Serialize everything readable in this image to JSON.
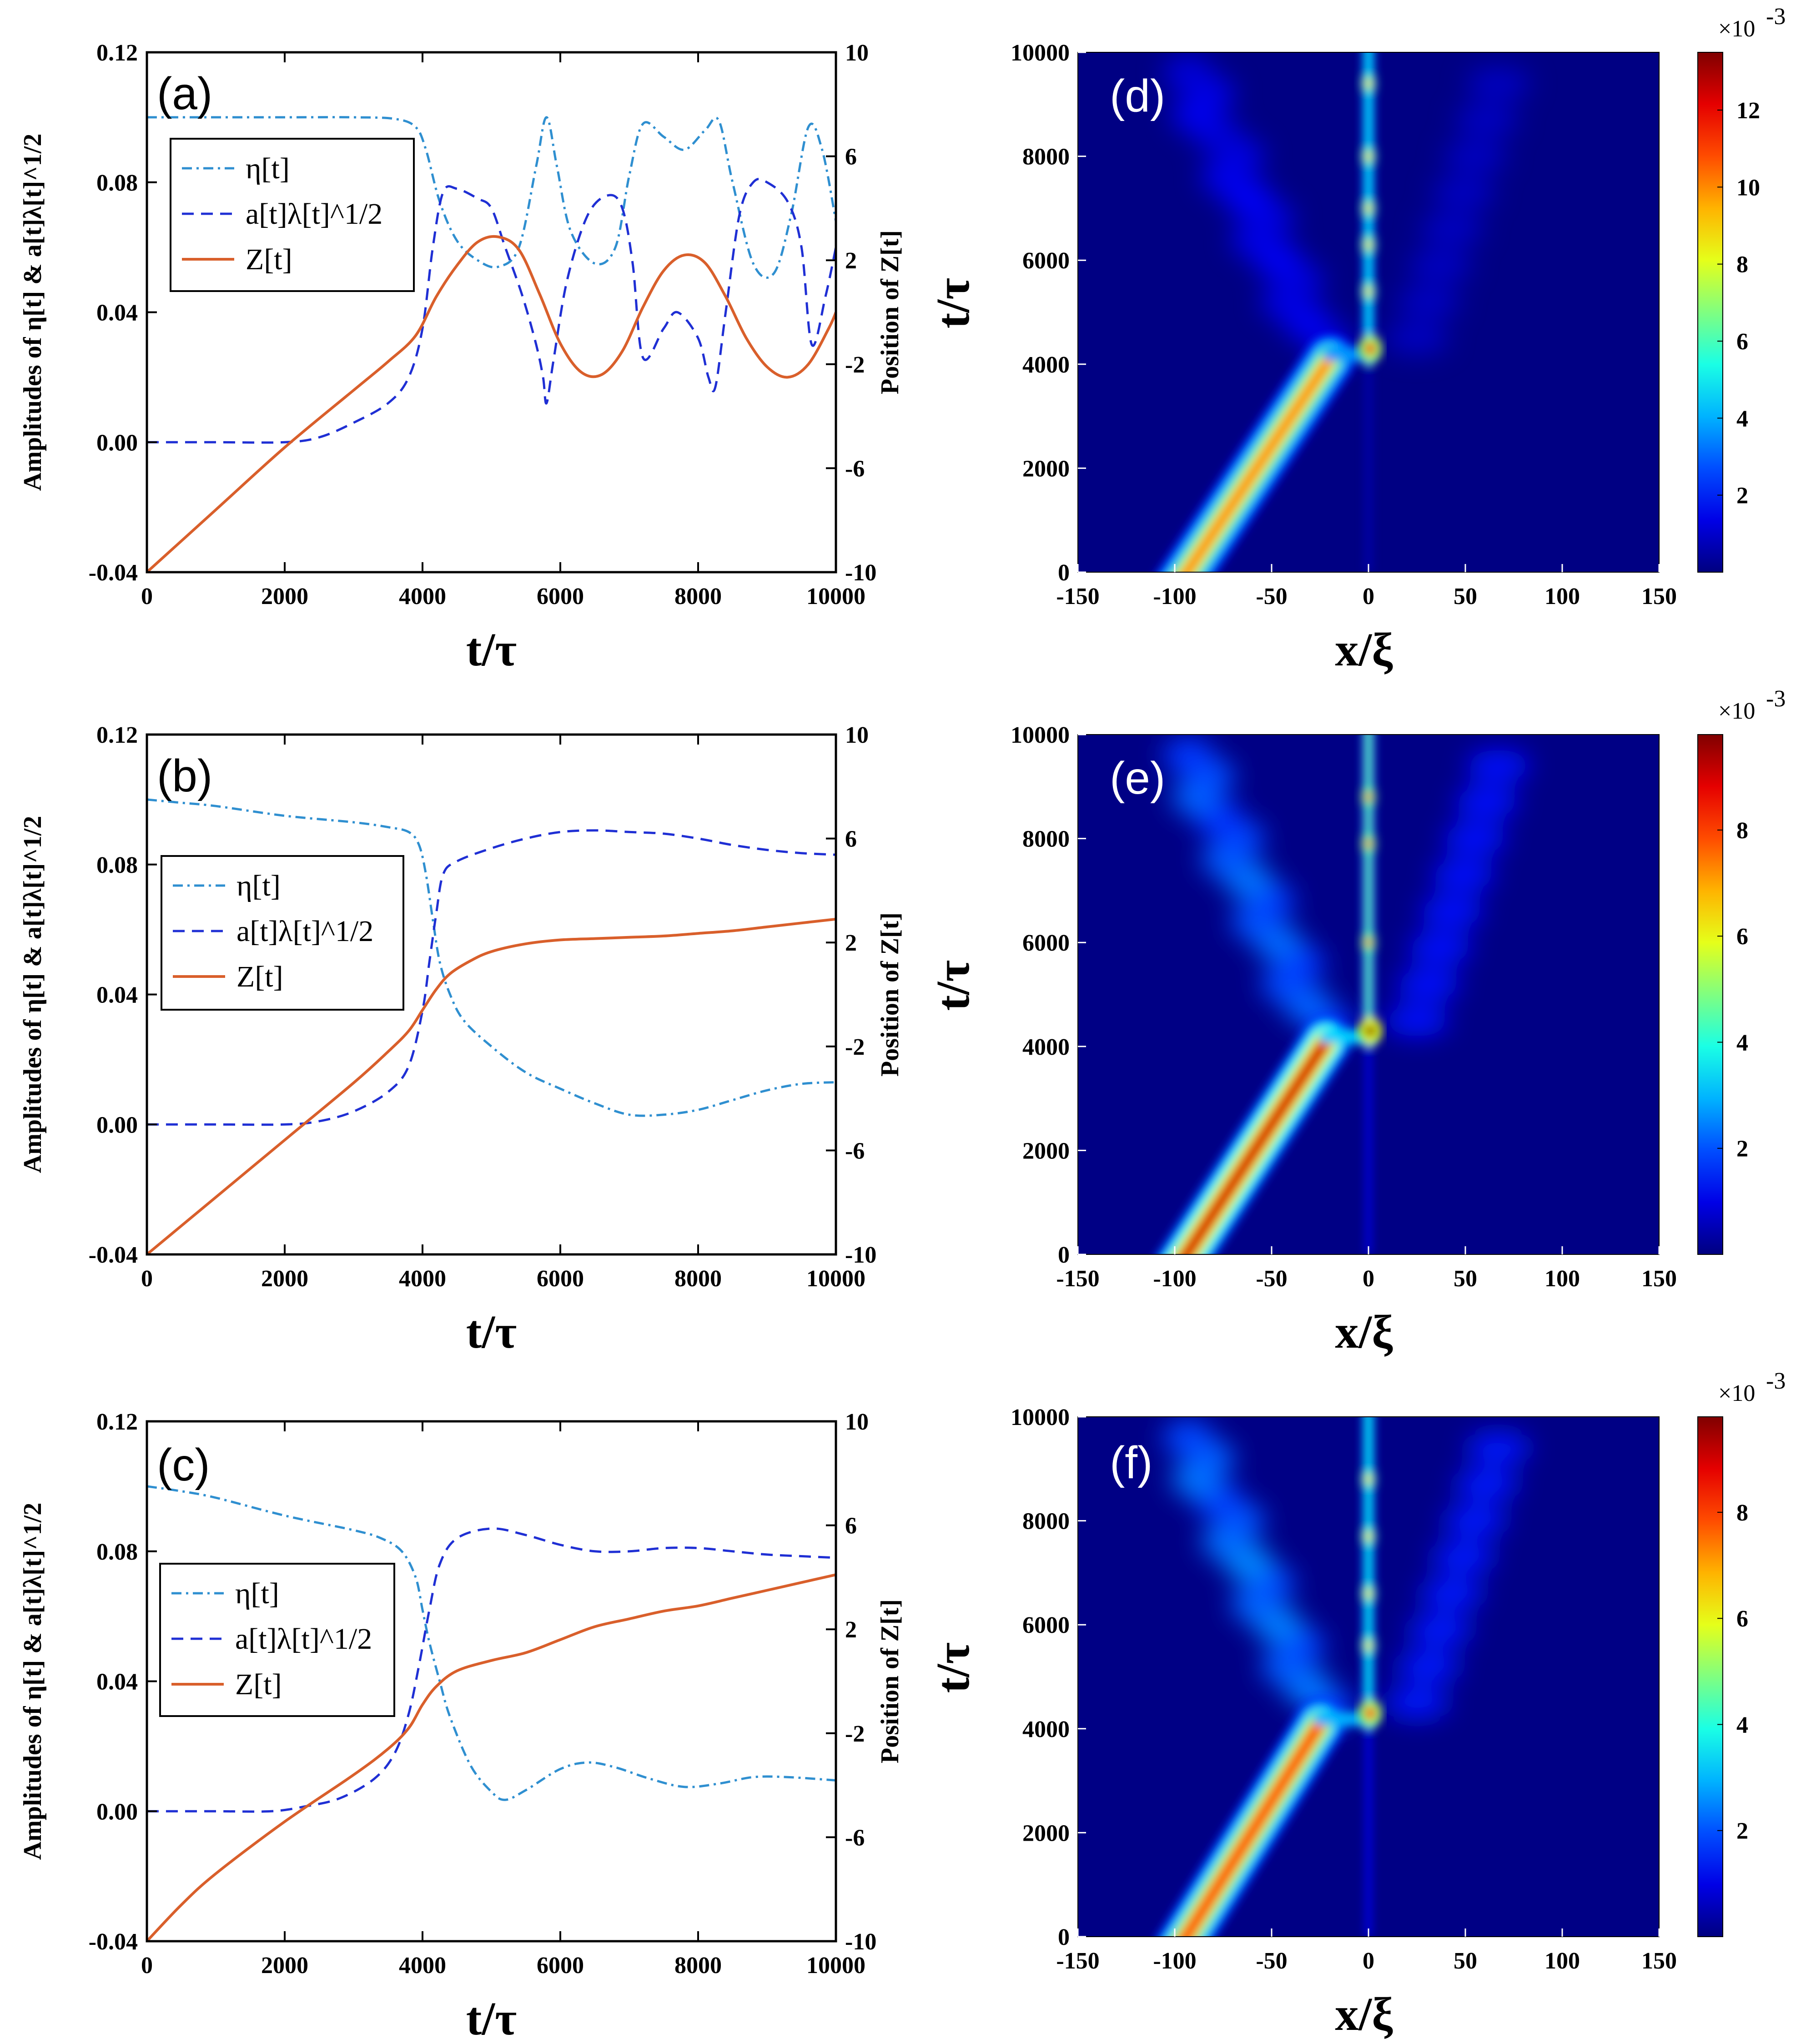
{
  "chart_data": [
    {
      "type": "line",
      "panel": "(a)",
      "xlabel": "t/τ",
      "ylabel": "Amplitudes of η[t] & a[t]λ[t]^1/2",
      "ylabel_right": "Position of Z[t]",
      "xlim": [
        0,
        10000
      ],
      "ylim": [
        -0.04,
        0.12
      ],
      "ylim_right": [
        -10,
        10
      ],
      "xticks": [
        "0",
        "2000",
        "4000",
        "6000",
        "8000",
        "10000"
      ],
      "yticks": [
        "-0.04",
        "0.00",
        "0.04",
        "0.08",
        "0.12"
      ],
      "yticks_right": [
        "-10",
        "-6",
        "-2",
        "2",
        "6",
        "10"
      ],
      "legend_position": "upper-left",
      "series": [
        {
          "name": "η[t]",
          "axis": "left",
          "style": "dashdot",
          "color": "#2f8fd0",
          "x": [
            0,
            1000,
            2000,
            3000,
            3600,
            3900,
            4050,
            4250,
            4500,
            4800,
            5100,
            5400,
            5650,
            5800,
            5950,
            6150,
            6500,
            6800,
            7000,
            7200,
            7500,
            7800,
            8100,
            8300,
            8500,
            8800,
            9100,
            9350,
            9600,
            9800,
            10000
          ],
          "y": [
            0.1,
            0.1,
            0.1,
            0.1,
            0.0995,
            0.097,
            0.09,
            0.074,
            0.062,
            0.056,
            0.054,
            0.06,
            0.085,
            0.1,
            0.085,
            0.065,
            0.055,
            0.06,
            0.082,
            0.098,
            0.094,
            0.09,
            0.096,
            0.099,
            0.08,
            0.055,
            0.052,
            0.07,
            0.097,
            0.09,
            0.068
          ]
        },
        {
          "name": "a[t]λ[t]^1/2",
          "axis": "left",
          "style": "dashed",
          "color": "#1f2fd4",
          "x": [
            0,
            1000,
            2000,
            2500,
            3000,
            3500,
            3800,
            4000,
            4150,
            4300,
            4500,
            4800,
            5000,
            5200,
            5450,
            5650,
            5750,
            5800,
            5900,
            6100,
            6400,
            6700,
            6900,
            7050,
            7200,
            7500,
            7700,
            8000,
            8150,
            8250,
            8400,
            8600,
            8800,
            9000,
            9300,
            9500,
            9650,
            9850,
            10000
          ],
          "y": [
            0.0,
            0.0,
            0.0,
            0.0015,
            0.006,
            0.012,
            0.02,
            0.035,
            0.06,
            0.077,
            0.078,
            0.075,
            0.072,
            0.06,
            0.045,
            0.03,
            0.02,
            0.012,
            0.025,
            0.05,
            0.07,
            0.076,
            0.072,
            0.055,
            0.026,
            0.035,
            0.04,
            0.032,
            0.02,
            0.017,
            0.04,
            0.07,
            0.08,
            0.08,
            0.074,
            0.06,
            0.03,
            0.045,
            0.06
          ]
        },
        {
          "name": "Z[t]",
          "axis": "right",
          "style": "solid",
          "color": "#d95f2b",
          "x": [
            0,
            1000,
            2000,
            3000,
            3500,
            3900,
            4200,
            4500,
            4800,
            5100,
            5400,
            5700,
            6000,
            6300,
            6600,
            6900,
            7200,
            7500,
            7800,
            8100,
            8400,
            8700,
            9000,
            9300,
            9600,
            9900,
            10000
          ],
          "y": [
            -10,
            -7.6,
            -5.2,
            -3.0,
            -1.9,
            -0.9,
            0.6,
            1.8,
            2.7,
            2.9,
            2.4,
            0.7,
            -1.2,
            -2.3,
            -2.4,
            -1.5,
            0.2,
            1.6,
            2.2,
            1.9,
            0.6,
            -1.0,
            -2.1,
            -2.5,
            -2.0,
            -0.6,
            0.0
          ]
        }
      ]
    },
    {
      "type": "line",
      "panel": "(b)",
      "xlabel": "t/τ",
      "ylabel": "Amplitudes of η[t] & a[t]λ[t]^1/2",
      "ylabel_right": "Position of Z[t]",
      "xlim": [
        0,
        10000
      ],
      "ylim": [
        -0.04,
        0.12
      ],
      "ylim_right": [
        -10,
        10
      ],
      "xticks": [
        "0",
        "2000",
        "4000",
        "6000",
        "8000",
        "10000"
      ],
      "yticks": [
        "-0.04",
        "0.00",
        "0.04",
        "0.08",
        "0.12"
      ],
      "yticks_right": [
        "-10",
        "-6",
        "-2",
        "2",
        "6",
        "10"
      ],
      "legend_position": "center-left",
      "series": [
        {
          "name": "η[t]",
          "axis": "left",
          "style": "dashdot",
          "color": "#2f8fd0",
          "x": [
            0,
            500,
            1000,
            2000,
            3000,
            3500,
            3800,
            3950,
            4050,
            4150,
            4250,
            4400,
            4600,
            5000,
            5500,
            6000,
            6500,
            7000,
            7500,
            8000,
            8500,
            9000,
            9500,
            10000
          ],
          "y": [
            0.1,
            0.099,
            0.098,
            0.095,
            0.093,
            0.0915,
            0.09,
            0.086,
            0.077,
            0.063,
            0.05,
            0.04,
            0.032,
            0.024,
            0.016,
            0.011,
            0.0065,
            0.003,
            0.003,
            0.0045,
            0.0075,
            0.0105,
            0.0125,
            0.013
          ]
        },
        {
          "name": "a[t]λ[t]^1/2",
          "axis": "left",
          "style": "dashed",
          "color": "#1f2fd4",
          "x": [
            0,
            1000,
            2000,
            2500,
            3000,
            3500,
            3800,
            4000,
            4100,
            4200,
            4300,
            4500,
            5000,
            5500,
            6000,
            6500,
            7000,
            7500,
            8000,
            8500,
            9000,
            9500,
            10000
          ],
          "y": [
            0.0,
            0.0,
            0.0,
            0.001,
            0.004,
            0.01,
            0.018,
            0.035,
            0.05,
            0.065,
            0.077,
            0.081,
            0.085,
            0.088,
            0.09,
            0.0905,
            0.09,
            0.0895,
            0.088,
            0.086,
            0.0845,
            0.0835,
            0.083
          ]
        },
        {
          "name": "Z[t]",
          "axis": "right",
          "style": "solid",
          "color": "#d95f2b",
          "x": [
            0,
            1000,
            2000,
            3000,
            3500,
            3800,
            4000,
            4200,
            4400,
            4700,
            5000,
            5500,
            6000,
            6500,
            7000,
            7500,
            8000,
            8500,
            9000,
            9500,
            10000
          ],
          "y": [
            -10,
            -7.8,
            -5.6,
            -3.4,
            -2.2,
            -1.4,
            -0.6,
            0.2,
            0.8,
            1.3,
            1.65,
            1.95,
            2.1,
            2.15,
            2.2,
            2.25,
            2.35,
            2.45,
            2.6,
            2.75,
            2.9
          ]
        }
      ]
    },
    {
      "type": "line",
      "panel": "(c)",
      "xlabel": "t/τ",
      "ylabel": "Amplitudes of η[t] & a[t]λ[t]^1/2",
      "ylabel_right": "Position of Z[t]",
      "xlim": [
        0,
        10000
      ],
      "ylim": [
        -0.04,
        0.12
      ],
      "ylim_right": [
        -10,
        10
      ],
      "xticks": [
        "0",
        "2000",
        "4000",
        "6000",
        "8000",
        "10000"
      ],
      "yticks": [
        "-0.04",
        "0.00",
        "0.04",
        "0.08",
        "0.12"
      ],
      "yticks_right": [
        "-10",
        "-6",
        "-2",
        "2",
        "6",
        "10"
      ],
      "legend_position": "center-left",
      "series": [
        {
          "name": "η[t]",
          "axis": "left",
          "style": "dashdot",
          "color": "#2f8fd0",
          "x": [
            0,
            500,
            1000,
            2000,
            3000,
            3400,
            3700,
            3900,
            4000,
            4100,
            4250,
            4400,
            4700,
            5000,
            5200,
            5500,
            6000,
            6400,
            6800,
            7300,
            7800,
            8300,
            8800,
            9300,
            10000
          ],
          "y": [
            0.1,
            0.0985,
            0.0965,
            0.091,
            0.0865,
            0.084,
            0.08,
            0.072,
            0.062,
            0.052,
            0.04,
            0.029,
            0.014,
            0.006,
            0.0035,
            0.0065,
            0.013,
            0.015,
            0.0135,
            0.01,
            0.0075,
            0.0085,
            0.0105,
            0.0105,
            0.0095
          ]
        },
        {
          "name": "a[t]λ[t]^1/2",
          "axis": "left",
          "style": "dashed",
          "color": "#1f2fd4",
          "x": [
            0,
            1000,
            1800,
            2300,
            2800,
            3300,
            3600,
            3800,
            3950,
            4100,
            4250,
            4500,
            5000,
            5500,
            6000,
            6500,
            7000,
            7500,
            8000,
            8500,
            9000,
            9500,
            10000
          ],
          "y": [
            0.0,
            0.0,
            0.0,
            0.0015,
            0.004,
            0.01,
            0.018,
            0.03,
            0.045,
            0.062,
            0.076,
            0.084,
            0.087,
            0.085,
            0.082,
            0.08,
            0.08,
            0.081,
            0.081,
            0.08,
            0.079,
            0.0785,
            0.078
          ]
        },
        {
          "name": "Z[t]",
          "axis": "right",
          "style": "solid",
          "color": "#d95f2b",
          "x": [
            0,
            500,
            1000,
            2000,
            3000,
            3500,
            3800,
            4000,
            4200,
            4500,
            5000,
            5500,
            6000,
            6500,
            7000,
            7500,
            8000,
            8500,
            9000,
            9500,
            10000
          ],
          "y": [
            -10,
            -8.6,
            -7.4,
            -5.4,
            -3.6,
            -2.6,
            -1.8,
            -0.9,
            -0.2,
            0.4,
            0.8,
            1.1,
            1.6,
            2.1,
            2.4,
            2.7,
            2.9,
            3.2,
            3.5,
            3.8,
            4.1
          ]
        }
      ]
    },
    {
      "type": "heatmap",
      "panel": "(d)",
      "xlabel": "x/ξ",
      "ylabel": "t/τ",
      "xlim": [
        -150,
        150
      ],
      "ylim": [
        0,
        10000
      ],
      "xticks": [
        "-150",
        "-100",
        "-50",
        "0",
        "50",
        "100",
        "150"
      ],
      "yticks": [
        "0",
        "2000",
        "4000",
        "6000",
        "8000",
        "10000"
      ],
      "colorbar": {
        "exponent_label": "×10",
        "exponent": "-3",
        "ticks": [
          "2",
          "4",
          "6",
          "8",
          "10",
          "12"
        ],
        "tick_values": [
          2,
          4,
          6,
          8,
          10,
          12
        ],
        "max": 13.5
      },
      "features": {
        "soliton_start_x": -100,
        "soliton_end_x": -20,
        "collision_t": 4100,
        "trapped_x": 0,
        "ring_amplitude": 12,
        "track_amplitude": 10.5,
        "trapped_amplitude": 5,
        "scatter_amplitude": 1.6,
        "bright_spots_t": [
          4300,
          5400,
          6300,
          7000,
          8000,
          9400
        ]
      }
    },
    {
      "type": "heatmap",
      "panel": "(e)",
      "xlabel": "x/ξ",
      "ylabel": "t/τ",
      "xlim": [
        -150,
        150
      ],
      "ylim": [
        0,
        10000
      ],
      "xticks": [
        "-150",
        "-100",
        "-50",
        "0",
        "50",
        "100",
        "150"
      ],
      "yticks": [
        "0",
        "2000",
        "4000",
        "6000",
        "8000",
        "10000"
      ],
      "colorbar": {
        "exponent_label": "×10",
        "exponent": "-3",
        "ticks": [
          "2",
          "4",
          "6",
          "8"
        ],
        "tick_values": [
          2,
          4,
          6,
          8
        ],
        "max": 9.8
      },
      "features": {
        "soliton_start_x": -100,
        "soliton_end_x": -22,
        "collision_t": 4100,
        "trapped_x": 0,
        "ring_amplitude": 9.8,
        "track_amplitude": 9.2,
        "trapped_amplitude": 4.6,
        "scatter_amplitude": 2.4,
        "bright_spots_t": [
          4300,
          6000,
          7900,
          8800
        ]
      }
    },
    {
      "type": "heatmap",
      "panel": "(f)",
      "xlabel": "x/ξ",
      "ylabel": "t/τ",
      "xlim": [
        -150,
        150
      ],
      "ylim": [
        0,
        10000
      ],
      "xticks": [
        "-150",
        "-100",
        "-50",
        "0",
        "50",
        "100",
        "150"
      ],
      "yticks": [
        "0",
        "2000",
        "4000",
        "6000",
        "8000",
        "10000"
      ],
      "colorbar": {
        "exponent_label": "×10",
        "exponent": "-3",
        "ticks": [
          "2",
          "4",
          "6",
          "8"
        ],
        "tick_values": [
          2,
          4,
          6,
          8
        ],
        "max": 9.8
      },
      "features": {
        "soliton_start_x": -100,
        "soliton_end_x": -25,
        "collision_t": 4100,
        "trapped_x": 0,
        "ring_amplitude": 8.6,
        "track_amplitude": 8.4,
        "trapped_amplitude": 3.8,
        "scatter_amplitude": 2.6,
        "bright_spots_t": [
          4300,
          5600,
          6600,
          7700,
          8800
        ]
      }
    }
  ]
}
